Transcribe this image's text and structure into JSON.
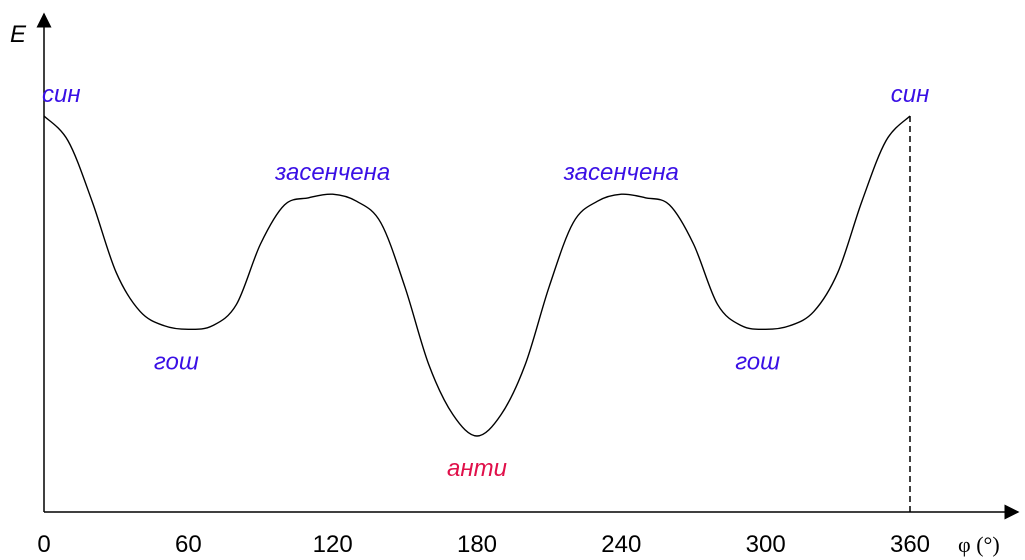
{
  "chart_data": {
    "type": "line",
    "title": "",
    "xlabel": "φ (°)",
    "ylabel": "E",
    "xlim": [
      0,
      360
    ],
    "ylim": [
      0,
      100
    ],
    "x_ticks": [
      "0",
      "60",
      "120",
      "180",
      "240",
      "300",
      "360"
    ],
    "grid": false,
    "series": [
      {
        "x": [
          0,
          10,
          20,
          30,
          40,
          50,
          60,
          70,
          80,
          90,
          100,
          110,
          120,
          130,
          140,
          150,
          160,
          170,
          180,
          190,
          200,
          210,
          220,
          230,
          240,
          250,
          260,
          270,
          280,
          290,
          300,
          310,
          320,
          330,
          340,
          350,
          360
        ],
        "values": [
          100,
          93,
          76,
          56,
          45,
          41,
          40,
          41,
          47,
          64,
          75,
          77,
          78,
          76,
          70,
          52,
          30,
          16,
          10,
          16,
          30,
          52,
          70,
          76,
          78,
          77,
          75,
          64,
          47,
          41,
          40,
          41,
          45,
          56,
          76,
          93,
          100
        ],
        "color": "#000000"
      }
    ],
    "annotations": [
      {
        "text": "син",
        "x": 0,
        "y": 100,
        "color": "#3a10e5"
      },
      {
        "text": "гош",
        "x": 60,
        "y": 40,
        "color": "#3a10e5"
      },
      {
        "text": "засенчена",
        "x": 120,
        "y": 78,
        "color": "#3a10e5"
      },
      {
        "text": "анти",
        "x": 180,
        "y": 10,
        "color": "#e0104a"
      },
      {
        "text": "засенчена",
        "x": 240,
        "y": 78,
        "color": "#3a10e5"
      },
      {
        "text": "гош",
        "x": 300,
        "y": 40,
        "color": "#3a10e5"
      },
      {
        "text": "син",
        "x": 360,
        "y": 100,
        "color": "#3a10e5"
      }
    ],
    "dashed_marker_x": 360
  }
}
